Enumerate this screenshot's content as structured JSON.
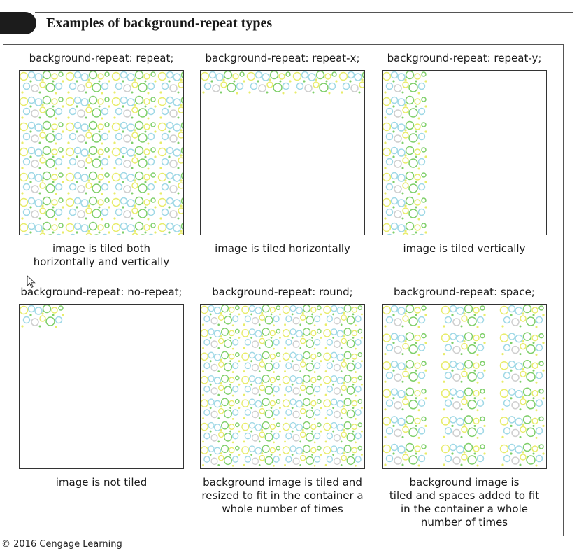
{
  "title": "Examples of background-repeat types",
  "examples": [
    {
      "code": "background-repeat: repeat;",
      "caption": "image is tiled both\nhorizontally and vertically",
      "mode": "repeat"
    },
    {
      "code": "background-repeat: repeat-x;",
      "caption": "image is tiled horizontally",
      "mode": "repeat-x"
    },
    {
      "code": "background-repeat: repeat-y;",
      "caption": "image is tiled vertically",
      "mode": "repeat-y"
    },
    {
      "code": "background-repeat: no-repeat;",
      "caption": "image is not tiled",
      "mode": "no-repeat"
    },
    {
      "code": "background-repeat: round;",
      "caption": "background image is tiled and\nresized to fit in the container a\nwhole number of times",
      "mode": "round"
    },
    {
      "code": "background-repeat: space;",
      "caption": "background image is\ntiled and spaces added to fit\nin the container a whole\nnumber of times",
      "mode": "space"
    }
  ],
  "copyright": "© 2016 Cengage Learning",
  "colors": {
    "green": "#7fcf6a",
    "yellow": "#e8ec6a",
    "blue": "#9fd8e6",
    "gray": "#cfcfcf",
    "rule": "#555555"
  }
}
